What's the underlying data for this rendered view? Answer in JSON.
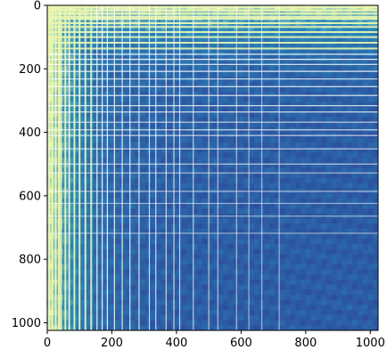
{
  "chart_data": {
    "type": "heatmap",
    "title": "",
    "xlabel": "",
    "ylabel": "",
    "rows": 1024,
    "cols": 1024,
    "xlim": [
      0,
      1024
    ],
    "ylim": [
      1024,
      0
    ],
    "x_ticks": [
      0,
      200,
      400,
      600,
      800,
      1000
    ],
    "y_ticks": [
      0,
      200,
      400,
      600,
      800,
      1000
    ],
    "x_tick_labels": [
      "0",
      "200",
      "400",
      "600",
      "800",
      "1000"
    ],
    "y_tick_labels": [
      "0",
      "200",
      "400",
      "600",
      "800",
      "1000"
    ],
    "colormap": "YlGnBu",
    "colors": {
      "low": "#2c4a9a",
      "mid": "#2b8cbe",
      "high": "#e8f6b1",
      "light_line": "#ffffff"
    },
    "white_line_positions": [
      6,
      16,
      26,
      36,
      42,
      56,
      68,
      84,
      100,
      118,
      136,
      154,
      170,
      186,
      208,
      232,
      256,
      284,
      316,
      336,
      368,
      392,
      410,
      452,
      500,
      528,
      586,
      624,
      664,
      718
    ]
  }
}
